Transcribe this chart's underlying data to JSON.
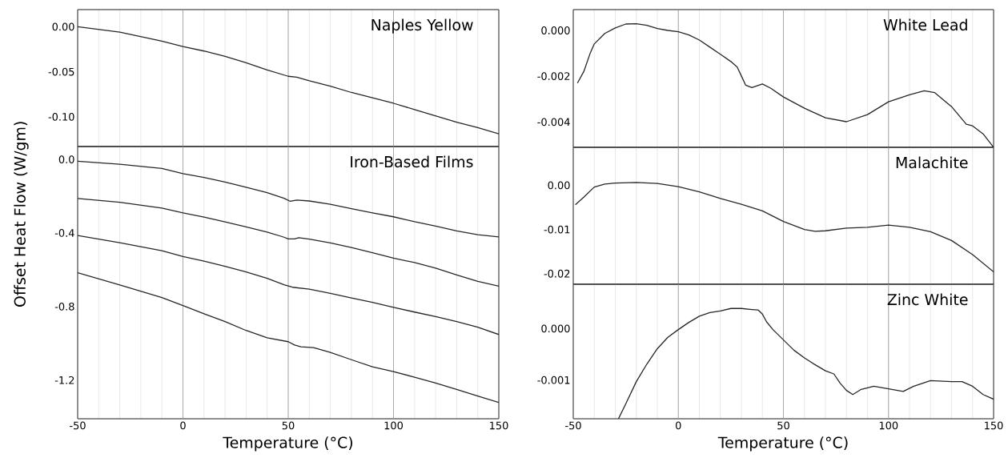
{
  "chart_data": [
    {
      "type": "line",
      "title": "Naples Yellow",
      "xlim": [
        -50,
        150
      ],
      "ylim": [
        -0.133,
        0.019
      ],
      "grid": "x",
      "tick_labels": "y",
      "xticks": [
        -50,
        {
          "value": -40,
          "label": null
        },
        {
          "value": -30,
          "label": null
        },
        {
          "value": -20,
          "label": null
        },
        {
          "value": -10,
          "label": null
        },
        0,
        {
          "value": 10,
          "label": null
        },
        {
          "value": 20,
          "label": null
        },
        {
          "value": 30,
          "label": null
        },
        {
          "value": 40,
          "label": null
        },
        50,
        {
          "value": 60,
          "label": null
        },
        {
          "value": 70,
          "label": null
        },
        {
          "value": 80,
          "label": null
        },
        {
          "value": 90,
          "label": null
        },
        100,
        {
          "value": 110,
          "label": null
        },
        {
          "value": 120,
          "label": null
        },
        {
          "value": 130,
          "label": null
        },
        {
          "value": 140,
          "label": null
        },
        150
      ],
      "yticks": [
        {
          "value": 0,
          "label": "0.00"
        },
        {
          "value": -0.05,
          "label": "-0.05"
        },
        {
          "value": -0.1,
          "label": "-0.10"
        }
      ],
      "series": [
        {
          "color": "#262626",
          "x": [
            -50,
            -40,
            -30,
            -20,
            -10,
            0,
            10,
            20,
            30,
            35,
            40,
            50,
            54,
            60,
            70,
            80,
            90,
            100,
            110,
            120,
            130,
            140,
            150
          ],
          "values": [
            0.0,
            -0.003,
            -0.006,
            -0.011,
            -0.016,
            -0.022,
            -0.027,
            -0.033,
            -0.04,
            -0.044,
            -0.048,
            -0.055,
            -0.056,
            -0.06,
            -0.066,
            -0.073,
            -0.079,
            -0.085,
            -0.092,
            -0.099,
            -0.106,
            -0.112,
            -0.119
          ]
        }
      ]
    },
    {
      "type": "line",
      "title": "Iron-Based Films",
      "xlabel": "Temperature (°C)",
      "ylabel": "Offset Heat Flow (W/gm)",
      "xlim": [
        -50,
        150
      ],
      "ylim": [
        -1.41,
        0.07
      ],
      "grid": "x",
      "xticks": [
        -50,
        {
          "value": -40,
          "label": null
        },
        {
          "value": -30,
          "label": null
        },
        {
          "value": -20,
          "label": null
        },
        {
          "value": -10,
          "label": null
        },
        0,
        {
          "value": 10,
          "label": null
        },
        {
          "value": 20,
          "label": null
        },
        {
          "value": 30,
          "label": null
        },
        {
          "value": 40,
          "label": null
        },
        50,
        {
          "value": 60,
          "label": null
        },
        {
          "value": 70,
          "label": null
        },
        {
          "value": 80,
          "label": null
        },
        {
          "value": 90,
          "label": null
        },
        100,
        {
          "value": 110,
          "label": null
        },
        {
          "value": 120,
          "label": null
        },
        {
          "value": 130,
          "label": null
        },
        {
          "value": 140,
          "label": null
        },
        150
      ],
      "yticks": [
        {
          "value": 0,
          "label": "0.0"
        },
        -0.4,
        -0.8,
        -1.2
      ],
      "series": [
        {
          "color": "#262626",
          "x": [
            -50,
            -30,
            -10,
            0,
            10,
            20,
            30,
            40,
            48,
            51,
            54,
            60,
            70,
            80,
            90,
            100,
            110,
            120,
            130,
            140,
            150
          ],
          "values": [
            -0.01,
            -0.026,
            -0.049,
            -0.077,
            -0.098,
            -0.123,
            -0.151,
            -0.181,
            -0.211,
            -0.228,
            -0.221,
            -0.226,
            -0.244,
            -0.268,
            -0.291,
            -0.312,
            -0.339,
            -0.363,
            -0.389,
            -0.409,
            -0.421
          ]
        },
        {
          "color": "#262626",
          "x": [
            -50,
            -30,
            -10,
            0,
            10,
            20,
            30,
            40,
            48,
            50,
            53,
            55,
            60,
            70,
            80,
            90,
            100,
            110,
            120,
            130,
            140,
            150
          ],
          "values": [
            -0.212,
            -0.233,
            -0.265,
            -0.291,
            -0.314,
            -0.34,
            -0.367,
            -0.395,
            -0.423,
            -0.432,
            -0.432,
            -0.426,
            -0.433,
            -0.454,
            -0.479,
            -0.507,
            -0.537,
            -0.561,
            -0.591,
            -0.628,
            -0.663,
            -0.689
          ]
        },
        {
          "color": "#262626",
          "x": [
            -50,
            -30,
            -10,
            0,
            10,
            20,
            30,
            40,
            48,
            52,
            60,
            70,
            80,
            90,
            100,
            110,
            120,
            130,
            140,
            150
          ],
          "values": [
            -0.414,
            -0.453,
            -0.496,
            -0.528,
            -0.553,
            -0.581,
            -0.612,
            -0.647,
            -0.681,
            -0.695,
            -0.705,
            -0.728,
            -0.753,
            -0.777,
            -0.804,
            -0.83,
            -0.854,
            -0.882,
            -0.912,
            -0.952
          ]
        },
        {
          "color": "#262626",
          "x": [
            -50,
            -30,
            -10,
            0,
            10,
            20,
            30,
            40,
            50,
            53,
            56,
            62,
            70,
            80,
            90,
            100,
            110,
            120,
            130,
            140,
            150
          ],
          "values": [
            -0.616,
            -0.682,
            -0.751,
            -0.795,
            -0.839,
            -0.882,
            -0.93,
            -0.97,
            -0.991,
            -1.009,
            -1.019,
            -1.023,
            -1.049,
            -1.089,
            -1.128,
            -1.154,
            -1.184,
            -1.216,
            -1.251,
            -1.286,
            -1.321
          ]
        }
      ]
    },
    {
      "type": "line",
      "title": "White Lead",
      "xlim": [
        -50,
        150
      ],
      "ylim": [
        -0.00511,
        0.00091
      ],
      "grid": "x",
      "tick_labels": "y",
      "xticks": [
        -50,
        {
          "value": -40,
          "label": null
        },
        {
          "value": -30,
          "label": null
        },
        {
          "value": -20,
          "label": null
        },
        {
          "value": -10,
          "label": null
        },
        0,
        {
          "value": 10,
          "label": null
        },
        {
          "value": 20,
          "label": null
        },
        {
          "value": 30,
          "label": null
        },
        {
          "value": 40,
          "label": null
        },
        50,
        {
          "value": 60,
          "label": null
        },
        {
          "value": 70,
          "label": null
        },
        {
          "value": 80,
          "label": null
        },
        {
          "value": 90,
          "label": null
        },
        100,
        {
          "value": 110,
          "label": null
        },
        {
          "value": 120,
          "label": null
        },
        {
          "value": 130,
          "label": null
        },
        {
          "value": 140,
          "label": null
        },
        150
      ],
      "yticks": [
        {
          "value": 0,
          "label": "0.000"
        },
        -0.002,
        -0.004
      ],
      "series": [
        {
          "color": "#262626",
          "x": [
            -48,
            -45,
            -42,
            -40,
            -35,
            -30,
            -25,
            -20,
            -15,
            -10,
            -5,
            0,
            5,
            10,
            15,
            20,
            25,
            28,
            30,
            32,
            35,
            40,
            44,
            50,
            60,
            70,
            80,
            90,
            95,
            100,
            110,
            117,
            122,
            130,
            137,
            140,
            145,
            150
          ],
          "values": [
            -0.0023,
            -0.0018,
            -0.00101,
            -0.00059,
            -0.00013,
            0.00011,
            0.00028,
            0.00029,
            0.00022,
            8e-05,
            0.0,
            -6e-05,
            -0.0002,
            -0.00042,
            -0.00073,
            -0.00104,
            -0.00136,
            -0.0016,
            -0.00199,
            -0.00239,
            -0.0025,
            -0.00234,
            -0.00253,
            -0.00291,
            -0.0034,
            -0.00382,
            -0.00399,
            -0.00368,
            -0.0034,
            -0.00312,
            -0.00281,
            -0.00264,
            -0.00272,
            -0.00333,
            -0.0041,
            -0.00417,
            -0.00452,
            -0.00511
          ]
        }
      ]
    },
    {
      "type": "line",
      "title": "Malachite",
      "xlim": [
        -50,
        150
      ],
      "ylim": [
        -0.0224,
        0.0086
      ],
      "grid": "x",
      "tick_labels": "y",
      "xticks": [
        -50,
        {
          "value": -40,
          "label": null
        },
        {
          "value": -30,
          "label": null
        },
        {
          "value": -20,
          "label": null
        },
        {
          "value": -10,
          "label": null
        },
        0,
        {
          "value": 10,
          "label": null
        },
        {
          "value": 20,
          "label": null
        },
        {
          "value": 30,
          "label": null
        },
        {
          "value": 40,
          "label": null
        },
        50,
        {
          "value": 60,
          "label": null
        },
        {
          "value": 70,
          "label": null
        },
        {
          "value": 80,
          "label": null
        },
        {
          "value": 90,
          "label": null
        },
        100,
        {
          "value": 110,
          "label": null
        },
        {
          "value": 120,
          "label": null
        },
        {
          "value": 130,
          "label": null
        },
        {
          "value": 140,
          "label": null
        },
        150
      ],
      "yticks": [
        {
          "value": 0,
          "label": "0.00"
        },
        -0.01,
        -0.02
      ],
      "series": [
        {
          "color": "#262626",
          "x": [
            -49,
            -45,
            -40,
            -35,
            -30,
            -20,
            -10,
            0,
            10,
            20,
            30,
            40,
            50,
            60,
            65,
            70,
            80,
            90,
            100,
            110,
            120,
            130,
            140,
            150
          ],
          "values": [
            -0.0044,
            -0.0027,
            -0.0004,
            0.0003,
            0.0005,
            0.00065,
            0.0004,
            -0.0003,
            -0.0015,
            -0.003,
            -0.0043,
            -0.0058,
            -0.0082,
            -0.01,
            -0.0104,
            -0.0103,
            -0.0097,
            -0.0095,
            -0.009,
            -0.0095,
            -0.0105,
            -0.0125,
            -0.0157,
            -0.0196
          ]
        }
      ]
    },
    {
      "type": "line",
      "title": "Zinc White",
      "xlabel": "Temperature (°C)",
      "xlim": [
        -50,
        150
      ],
      "ylim": [
        -0.00175,
        0.00086
      ],
      "grid": "x",
      "xticks": [
        -50,
        {
          "value": -40,
          "label": null
        },
        {
          "value": -30,
          "label": null
        },
        {
          "value": -20,
          "label": null
        },
        {
          "value": -10,
          "label": null
        },
        0,
        {
          "value": 10,
          "label": null
        },
        {
          "value": 20,
          "label": null
        },
        {
          "value": 30,
          "label": null
        },
        {
          "value": 40,
          "label": null
        },
        50,
        {
          "value": 60,
          "label": null
        },
        {
          "value": 70,
          "label": null
        },
        {
          "value": 80,
          "label": null
        },
        {
          "value": 90,
          "label": null
        },
        100,
        {
          "value": 110,
          "label": null
        },
        {
          "value": 120,
          "label": null
        },
        {
          "value": 130,
          "label": null
        },
        {
          "value": 140,
          "label": null
        },
        150
      ],
      "yticks": [
        {
          "value": 0,
          "label": "0.000"
        },
        -0.001
      ],
      "series": [
        {
          "color": "#262626",
          "x": [
            -28.5,
            -25,
            -20,
            -15,
            -10,
            -5,
            0,
            5,
            10,
            15,
            20,
            25,
            30,
            35,
            38,
            40,
            42,
            45,
            50,
            55,
            60,
            65,
            70,
            74,
            77,
            80,
            83,
            87,
            93,
            100,
            107,
            112,
            120,
            130,
            135,
            140,
            145,
            150
          ],
          "values": [
            -0.00175,
            -0.00146,
            -0.00103,
            -0.00069,
            -0.00039,
            -0.00017,
            -2e-05,
            0.00012,
            0.00024,
            0.00031,
            0.00034,
            0.00039,
            0.00039,
            0.00037,
            0.00036,
            0.00028,
            0.00013,
            -2e-05,
            -0.00022,
            -0.00042,
            -0.00057,
            -0.0007,
            -0.00082,
            -0.00088,
            -0.00106,
            -0.0012,
            -0.00128,
            -0.00118,
            -0.00112,
            -0.00117,
            -0.00122,
            -0.00112,
            -0.00101,
            -0.00103,
            -0.00103,
            -0.00112,
            -0.00128,
            -0.00137
          ]
        }
      ]
    }
  ]
}
